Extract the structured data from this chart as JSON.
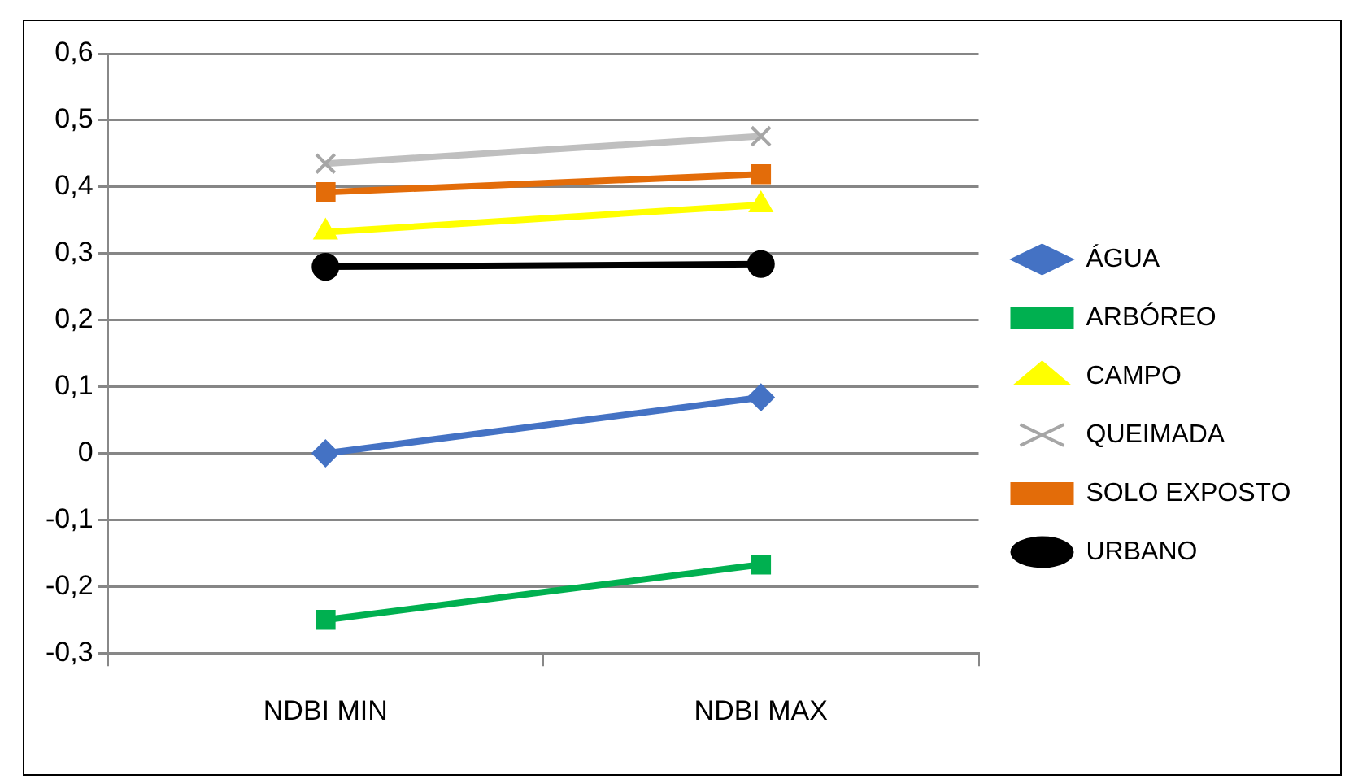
{
  "chart_data": {
    "type": "line",
    "categories": [
      "NDBI MIN",
      "NDBI MAX"
    ],
    "series": [
      {
        "name": "ÁGUA",
        "color": "#4472c4",
        "values": [
          0,
          0.084
        ],
        "marker": "diamond"
      },
      {
        "name": "ARBÓREO",
        "color": "#00b050",
        "values": [
          -0.25,
          -0.167
        ],
        "marker": "square"
      },
      {
        "name": "CAMPO",
        "color": "#ffff00",
        "values": [
          0.332,
          0.373
        ],
        "marker": "triangle"
      },
      {
        "name": "QUEIMADA",
        "color": "#bfbfbf",
        "values": [
          0.435,
          0.476
        ],
        "marker": "cross"
      },
      {
        "name": "SOLO EXPOSTO",
        "color": "#e36c09",
        "values": [
          0.392,
          0.419
        ],
        "marker": "square"
      },
      {
        "name": "URBANO",
        "color": "#000000",
        "values": [
          0.28,
          0.284
        ],
        "marker": "circle"
      }
    ],
    "ylim": [
      -0.3,
      0.6
    ],
    "yticks": [
      {
        "value": -0.3,
        "label": "-0,3"
      },
      {
        "value": -0.2,
        "label": "-0,2"
      },
      {
        "value": -0.1,
        "label": "-0,1"
      },
      {
        "value": 0,
        "label": "0"
      },
      {
        "value": 0.1,
        "label": "0,1"
      },
      {
        "value": 0.2,
        "label": "0,2"
      },
      {
        "value": 0.3,
        "label": "0,3"
      },
      {
        "value": 0.4,
        "label": "0,4"
      },
      {
        "value": 0.5,
        "label": "0,5"
      },
      {
        "value": 0.6,
        "label": "0,6"
      }
    ],
    "grid": "y",
    "legend": "right"
  }
}
